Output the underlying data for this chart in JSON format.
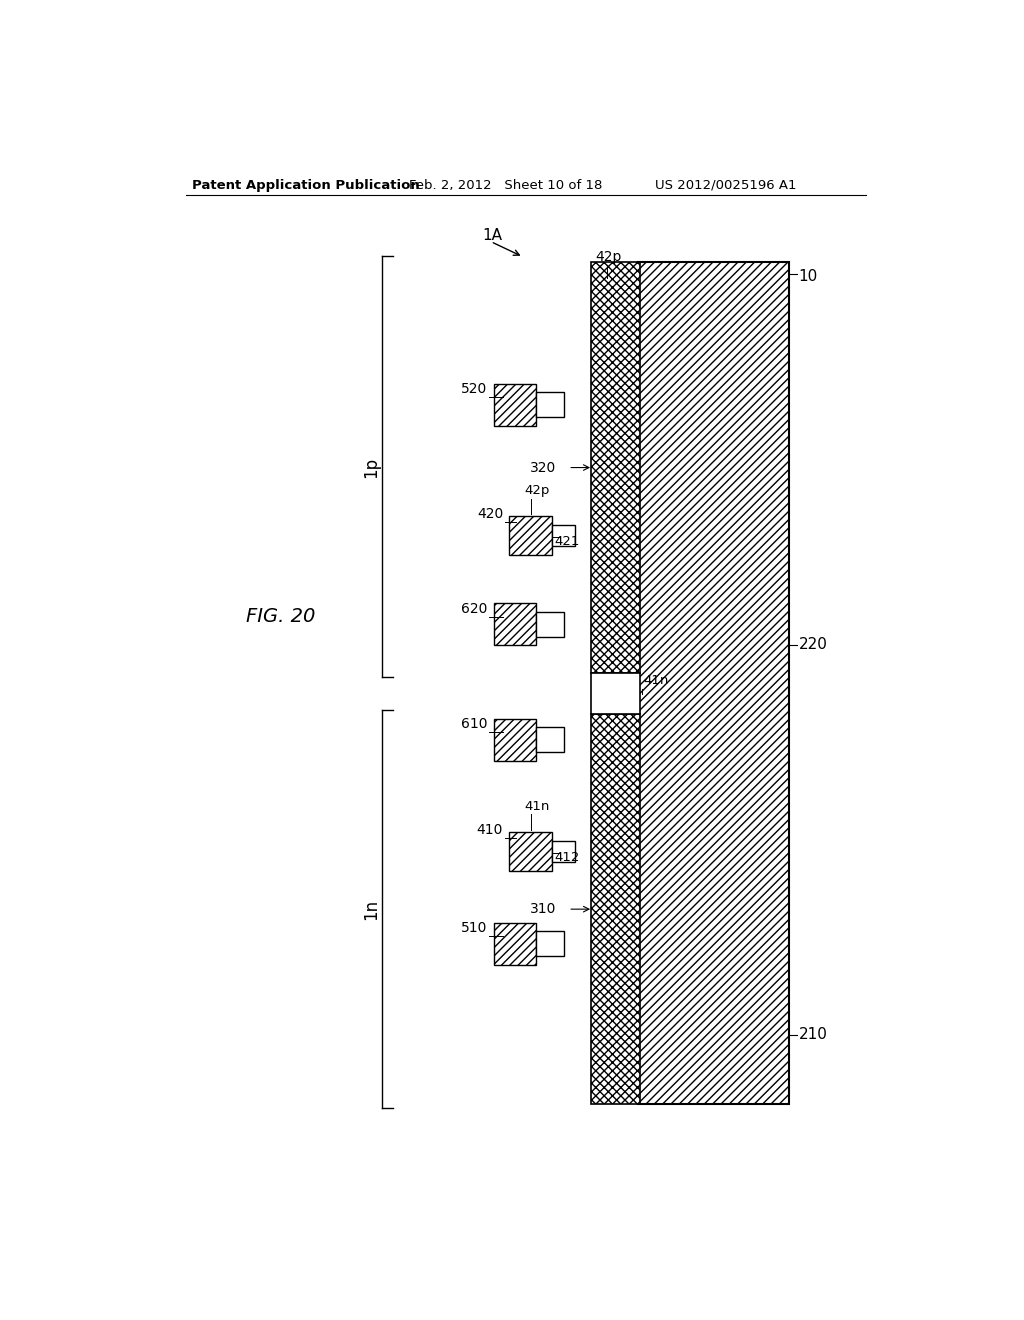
{
  "bg_color": "#ffffff",
  "line_color": "#000000",
  "header_left": "Patent Application Publication",
  "header_mid": "Feb. 2, 2012   Sheet 10 of 18",
  "header_right": "US 2012/0025196 A1",
  "fig_label": "FIG. 20",
  "label_1A": "1A",
  "label_1p": "1p",
  "label_1n": "1n",
  "label_10": "10",
  "label_210": "210",
  "label_220": "220",
  "label_310": "310",
  "label_320": "320",
  "label_410": "410",
  "label_420": "420",
  "label_41n": "41n",
  "label_42p_top": "42p",
  "label_412": "412",
  "label_421": "421",
  "label_510": "510",
  "label_520": "520",
  "label_610": "610",
  "label_620": "620",
  "label_41n_left": "41n",
  "label_42p_left": "42p"
}
